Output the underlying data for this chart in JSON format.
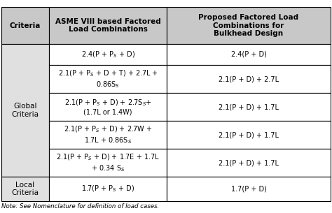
{
  "note": "Note: See Nomenclature for definition of load cases.",
  "header_col1": "Criteria",
  "header_col2": "ASME VIII based Factored\nLoad Combinations",
  "header_col3": "Proposed Factored Load\nCombinations for\nBulkhead Design",
  "col2_rows": [
    "2.4(P + P$_S$ + D)",
    "2.1(P + P$_S$ + D + T) + 2.7L +\n0.86S$_S$",
    "2.1(P + P$_S$ + D) + 2.7S$_S$+\n(1.7L or 1.4W)",
    "2.1(P + P$_S$ + D) + 2.7W +\n1.7L + 0.86S$_S$",
    "2.1(P + P$_S$ + D) + 1.7E + 1.7L\n+ 0.34 S$_S$",
    "1.7(P + P$_S$ + D)"
  ],
  "col3_rows": [
    "2.4(P + D)",
    "2.1(P + D) + 2.7L",
    "2.1(P + D) + 1.7L",
    "2.1(P + D) + 1.7L",
    "2.1(P + D) + 1.7L",
    "1.7(P + D)"
  ],
  "header_bg": "#c8c8c8",
  "row_bg": "#ffffff",
  "criteria_bg": "#e0e0e0",
  "border_color": "#000000",
  "text_color": "#000000",
  "figsize": [
    4.74,
    3.05
  ],
  "dpi": 100
}
